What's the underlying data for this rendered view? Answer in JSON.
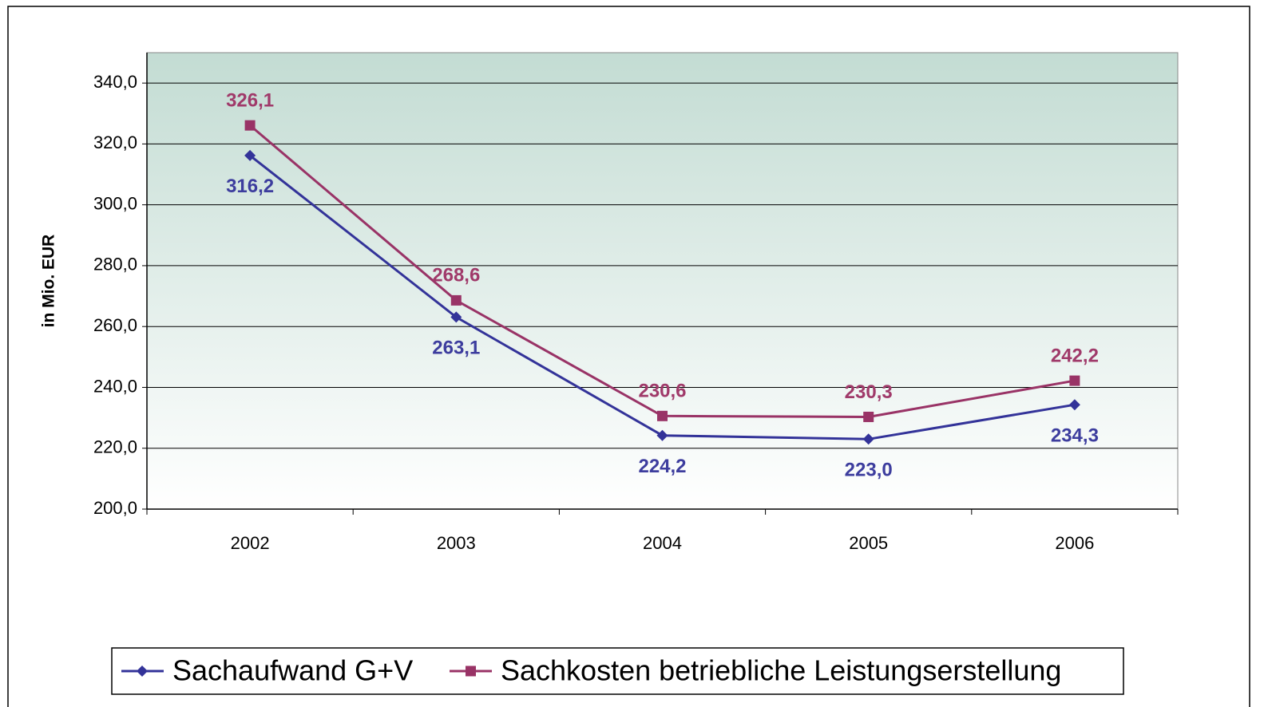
{
  "chart_data": {
    "type": "line",
    "y_label": "in Mio. EUR",
    "categories": [
      "2002",
      "2003",
      "2004",
      "2005",
      "2006"
    ],
    "series": [
      {
        "name": "Sachaufwand G+V",
        "color": "#333399",
        "marker": "diamond",
        "label_color": "#3d3d9e",
        "values": [
          316.2,
          263.1,
          224.2,
          223.0,
          234.3
        ],
        "value_labels": [
          "316,2",
          "263,1",
          "224,2",
          "223,0",
          "234,3"
        ]
      },
      {
        "name": "Sachkosten betriebliche Leistungserstellung",
        "color": "#993366",
        "marker": "square",
        "label_color": "#a03a6a",
        "values": [
          326.1,
          268.6,
          230.6,
          230.3,
          242.2
        ],
        "value_labels": [
          "326,1",
          "268,6",
          "230,6",
          "230,3",
          "242,2"
        ]
      }
    ],
    "ylim": [
      200,
      350
    ],
    "yticks": [
      {
        "value": 200,
        "label": "200,0"
      },
      {
        "value": 220,
        "label": "220,0"
      },
      {
        "value": 240,
        "label": "240,0"
      },
      {
        "value": 260,
        "label": "260,0"
      },
      {
        "value": 280,
        "label": "280,0"
      },
      {
        "value": 300,
        "label": "300,0"
      },
      {
        "value": 320,
        "label": "320,0"
      },
      {
        "value": 340,
        "label": "340,0"
      }
    ],
    "grid": true
  }
}
